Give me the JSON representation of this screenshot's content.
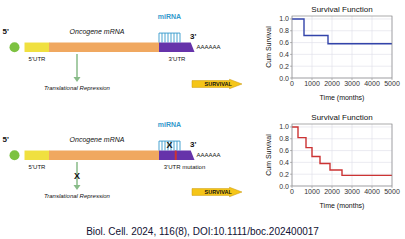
{
  "chart_data": [
    {
      "type": "step",
      "title": "Survival Function",
      "xlabel": "Time (months)",
      "ylabel": "Cum Survival",
      "x": [
        0,
        600,
        600,
        1800,
        1800,
        5000
      ],
      "values": [
        1.0,
        1.0,
        0.72,
        0.72,
        0.58,
        0.58
      ],
      "color": "#3344aa",
      "xlim": [
        0,
        5000
      ],
      "ylim": [
        0,
        1.05
      ],
      "xticks": [
        0,
        1000,
        2000,
        3000,
        4000,
        5000
      ],
      "yticks": [
        {
          "value": 0.0,
          "label": "0.0"
        },
        0.2,
        0.4,
        0.6,
        0.8,
        {
          "value": 1.0,
          "label": "1.0"
        }
      ],
      "grid": true,
      "annotations": [
        "5'",
        "3'",
        "AAAAAA",
        "5'UTR",
        "3'UTR",
        "Oncogene mRNA",
        "miRNA",
        "Translational Repression",
        "SURVIVAL"
      ]
    },
    {
      "type": "step",
      "title": "Survival Function",
      "xlabel": "Time (months)",
      "ylabel": "Cum Survival",
      "x": [
        0,
        300,
        300,
        700,
        700,
        1000,
        1000,
        1400,
        1400,
        1900,
        1900,
        2500,
        2500,
        5000
      ],
      "values": [
        1.0,
        1.0,
        0.82,
        0.82,
        0.65,
        0.65,
        0.5,
        0.5,
        0.38,
        0.38,
        0.27,
        0.27,
        0.18,
        0.18
      ],
      "color": "#cc3333",
      "xlim": [
        0,
        5000
      ],
      "ylim": [
        0,
        1.05
      ],
      "xticks": [
        0,
        1000,
        2000,
        3000,
        4000,
        5000
      ],
      "yticks": [
        {
          "value": 0.0,
          "label": "0.0"
        },
        0.2,
        0.4,
        0.6,
        0.8,
        {
          "value": 1.0,
          "label": "1.0"
        }
      ],
      "grid": true,
      "annotations": [
        "5'",
        "3'",
        "AAAAAA",
        "5'UTR",
        "3'UTR mutation",
        "Oncogene mRNA",
        "miRNA",
        "Translational Repression",
        "SURVIVAL",
        "X",
        "X",
        "Biol. Cell. 2024, 116(8), DOI:10.1111/boc.202400017"
      ]
    }
  ]
}
